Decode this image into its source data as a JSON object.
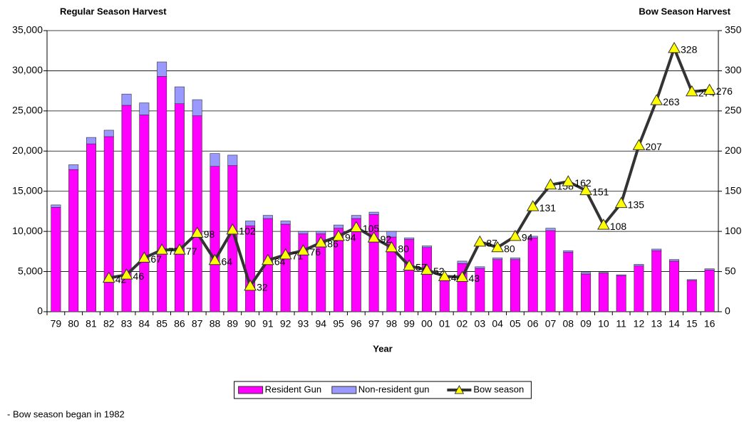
{
  "chart_data": {
    "type": "bar",
    "stacked": true,
    "y_title": "Regular Season Harvest",
    "y2_title": "Bow Season Harvest",
    "x_title": "Year",
    "categories": [
      "79",
      "80",
      "81",
      "82",
      "83",
      "84",
      "85",
      "86",
      "87",
      "88",
      "89",
      "90",
      "91",
      "92",
      "93",
      "94",
      "95",
      "96",
      "97",
      "98",
      "99",
      "00",
      "01",
      "02",
      "03",
      "04",
      "05",
      "06",
      "07",
      "08",
      "09",
      "10",
      "11",
      "12",
      "13",
      "14",
      "15",
      "16"
    ],
    "series": [
      {
        "name": "Resident Gun",
        "color": "#ff00ff",
        "values": [
          13000,
          17700,
          20900,
          21800,
          25700,
          24500,
          29300,
          25900,
          24400,
          18100,
          18200,
          10700,
          11600,
          10900,
          9700,
          9700,
          10400,
          11600,
          12100,
          9300,
          9000,
          8000,
          4200,
          6000,
          5400,
          6500,
          6500,
          9200,
          10100,
          7400,
          4700,
          4800,
          4500,
          5700,
          7600,
          6300,
          3900,
          5200
        ]
      },
      {
        "name": "Non-resident gun",
        "color": "#9999ff",
        "values": [
          300,
          600,
          800,
          800,
          1400,
          1500,
          1800,
          2100,
          2000,
          1600,
          1300,
          600,
          400,
          400,
          300,
          300,
          400,
          400,
          300,
          700,
          200,
          200,
          100,
          300,
          200,
          200,
          200,
          200,
          300,
          200,
          200,
          100,
          100,
          200,
          200,
          200,
          100,
          150
        ]
      },
      {
        "name": "Bow season",
        "type": "line",
        "axis": "y2",
        "color": "#333333",
        "marker_color": "#ffff00",
        "values": [
          null,
          null,
          null,
          42,
          46,
          67,
          77,
          77,
          98,
          64,
          102,
          32,
          64,
          71,
          76,
          86,
          94,
          105,
          92,
          80,
          57,
          52,
          44,
          43,
          87,
          80,
          94,
          131,
          158,
          162,
          151,
          108,
          135,
          207,
          263,
          328,
          274,
          276
        ]
      }
    ],
    "ylim": [
      0,
      35000
    ],
    "yticks": [
      0,
      {
        "value": 5000,
        "label": "5,000"
      },
      {
        "value": 10000,
        "label": "10,000"
      },
      {
        "value": 15000,
        "label": "15,000"
      },
      {
        "value": 20000,
        "label": "20,000"
      },
      {
        "value": 25000,
        "label": "25,000"
      },
      {
        "value": 30000,
        "label": "30,000"
      },
      {
        "value": 35000,
        "label": "35,000"
      }
    ],
    "y2lim": [
      0,
      350
    ],
    "y2ticks": [
      0,
      50,
      100,
      150,
      200,
      250,
      300,
      350
    ],
    "grid": true,
    "legend": "bottom",
    "annotations": [
      "- Bow season began in 1982"
    ]
  }
}
